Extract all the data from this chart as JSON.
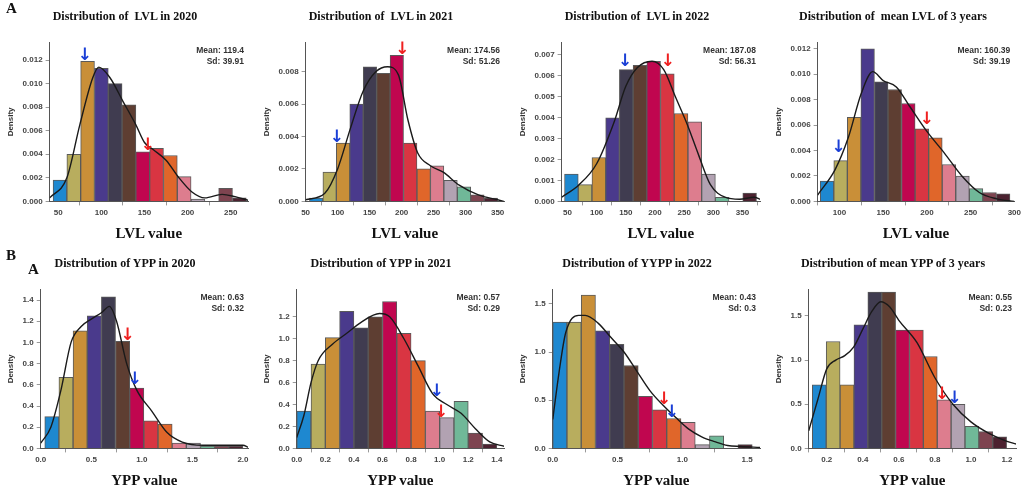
{
  "chart_data": [
    {
      "type": "histogram",
      "title": "Distribution of  LVL in 2020",
      "xlabel": "LVL value",
      "ylabel": "Density",
      "bins": [
        44,
        60,
        76,
        92,
        108,
        124,
        140,
        156,
        172,
        188,
        204,
        220,
        236,
        252,
        268
      ],
      "values": [
        0.0018,
        0.004,
        0.0119,
        0.0113,
        0.01,
        0.0082,
        0.0042,
        0.0045,
        0.0039,
        0.0021,
        0.0002,
        0,
        0.0011,
        0.0003
      ],
      "colors": [
        "#1e88d0",
        "#b8ad5e",
        "#c98f38",
        "#4a3a8c",
        "#403c50",
        "#5e3e32",
        "#c0064f",
        "#d93542",
        "#e0662a",
        "#dd7d8e",
        "#b2a2b2",
        "#70b898",
        "#7e4450",
        "#4c2230"
      ],
      "series": [
        {
          "type": "line",
          "color": "#1a1a1a",
          "x": [
            40,
            60,
            75,
            90,
            97,
            110,
            125,
            140,
            150,
            160,
            175,
            190,
            205,
            220,
            240,
            255,
            270
          ],
          "values": [
            0.0003,
            0.002,
            0.0065,
            0.0105,
            0.0114,
            0.0105,
            0.0085,
            0.0065,
            0.005,
            0.0044,
            0.0035,
            0.002,
            0.0008,
            0.0003,
            0.0006,
            0.0004,
            0.0001
          ]
        }
      ],
      "xlim": [
        40,
        270
      ],
      "xticks": [
        50,
        100,
        150,
        200,
        250
      ],
      "ylim": [
        0,
        0.0135
      ],
      "yticks": [
        {
          "value": 0,
          "label": "0.000"
        },
        {
          "value": 0.002,
          "label": "0.002"
        },
        {
          "value": 0.004,
          "label": "0.004"
        },
        {
          "value": 0.006,
          "label": "0.006"
        },
        {
          "value": 0.008,
          "label": "0.008"
        },
        {
          "value": 0.01,
          "label": "0.010"
        },
        {
          "value": 0.012,
          "label": "0.012"
        }
      ],
      "annotations": [
        "A",
        "Mean: 119.4",
        "Sd: 39.91",
        {
          "text": "↓",
          "x": 81,
          "y": 0.0119
        },
        {
          "text": "↓",
          "x": 154,
          "y": 0.0043
        }
      ]
    },
    {
      "type": "histogram",
      "title": "Distribution of  LVL in 2021",
      "xlabel": "LVL value",
      "ylabel": "Density",
      "bins": [
        56,
        77,
        98,
        119,
        140,
        161,
        182,
        203,
        224,
        245,
        266,
        287,
        308,
        329,
        350
      ],
      "values": [
        0.0002,
        0.0018,
        0.0036,
        0.006,
        0.0083,
        0.0079,
        0.009,
        0.0036,
        0.002,
        0.0022,
        0.0013,
        0.0009,
        0.0004,
        0.0002
      ],
      "colors": [
        "#1e88d0",
        "#b8ad5e",
        "#c98f38",
        "#4a3a8c",
        "#403c50",
        "#5e3e32",
        "#c0064f",
        "#d93542",
        "#e0662a",
        "#dd7d8e",
        "#b2a2b2",
        "#70b898",
        "#7e4450",
        "#4c2230"
      ],
      "series": [
        {
          "type": "line",
          "color": "#1a1a1a",
          "x": [
            50,
            80,
            100,
            120,
            140,
            160,
            178,
            195,
            210,
            225,
            245,
            265,
            290,
            320,
            350,
            360
          ],
          "values": [
            0.0001,
            0.0005,
            0.002,
            0.0045,
            0.0068,
            0.008,
            0.0083,
            0.0078,
            0.005,
            0.003,
            0.0022,
            0.0018,
            0.001,
            0.0004,
            0.0001,
            0
          ]
        }
      ],
      "xlim": [
        50,
        360
      ],
      "xticks": [
        50,
        100,
        150,
        200,
        250,
        300,
        350
      ],
      "ylim": [
        0,
        0.0098
      ],
      "yticks": [
        {
          "value": 0,
          "label": "0.000"
        },
        {
          "value": 0.002,
          "label": "0.002"
        },
        {
          "value": 0.004,
          "label": "0.004"
        },
        {
          "value": 0.006,
          "label": "0.006"
        },
        {
          "value": 0.008,
          "label": "0.008"
        }
      ],
      "annotations": [
        "Mean: 174.56",
        "Sd: 51.26",
        {
          "text": "↓",
          "x": 99,
          "y": 0.0036
        },
        {
          "text": "↓",
          "x": 201,
          "y": 0.009
        }
      ]
    },
    {
      "type": "histogram",
      "title": "Distribution of  LVL in 2022",
      "xlabel": "LVL value",
      "ylabel": "Density",
      "bins": [
        45,
        68.5,
        92,
        115.5,
        139,
        162.5,
        186,
        209.5,
        233,
        256.5,
        280,
        303.5,
        327,
        350.5,
        374
      ],
      "values": [
        0.0013,
        0.0008,
        0.0021,
        0.004,
        0.0063,
        0.0065,
        0.0067,
        0.0061,
        0.0042,
        0.0038,
        0.0013,
        0.0002,
        0,
        0.0004
      ],
      "colors": [
        "#1e88d0",
        "#b8ad5e",
        "#c98f38",
        "#4a3a8c",
        "#403c50",
        "#5e3e32",
        "#c0064f",
        "#d93542",
        "#e0662a",
        "#dd7d8e",
        "#b2a2b2",
        "#70b898",
        "#7e4450",
        "#4c2230"
      ],
      "series": [
        {
          "type": "line",
          "color": "#1a1a1a",
          "x": [
            40,
            70,
            100,
            130,
            150,
            170,
            195,
            215,
            235,
            255,
            275,
            295,
            320,
            345,
            370,
            380
          ],
          "values": [
            0.0002,
            0.0008,
            0.0018,
            0.0038,
            0.0055,
            0.0064,
            0.0067,
            0.0063,
            0.005,
            0.0037,
            0.0022,
            0.0008,
            0.0002,
            0.0001,
            0.0002,
            0.0001
          ]
        }
      ],
      "xlim": [
        40,
        380
      ],
      "xticks": [
        50,
        100,
        150,
        200,
        250,
        300,
        350
      ],
      "ylim": [
        0,
        0.0076
      ],
      "yticks": [
        {
          "value": 0,
          "label": "0.000"
        },
        {
          "value": 0.001,
          "label": "0.001"
        },
        {
          "value": 0.002,
          "label": "0.002"
        },
        {
          "value": 0.003,
          "label": "0.003"
        },
        {
          "value": 0.004,
          "label": "0.004"
        },
        {
          "value": 0.005,
          "label": "0.005"
        },
        {
          "value": 0.006,
          "label": "0.006"
        },
        {
          "value": 0.007,
          "label": "0.007"
        }
      ],
      "annotations": [
        "Mean: 187.08",
        "Sd: 56.31",
        {
          "text": "↓",
          "x": 149,
          "y": 0.0064
        },
        {
          "text": "↓",
          "x": 222,
          "y": 0.0064
        }
      ]
    },
    {
      "type": "histogram",
      "title": "Distribution of  mean LVL of 3 years",
      "xlabel": "LVL value",
      "ylabel": "Density",
      "bins": [
        78,
        93.5,
        109,
        124.5,
        140,
        155.5,
        171,
        186.5,
        202,
        217.5,
        233,
        248.5,
        264,
        279.5,
        295
      ],
      "values": [
        0.0016,
        0.0032,
        0.0066,
        0.012,
        0.0094,
        0.0088,
        0.0077,
        0.0057,
        0.005,
        0.0029,
        0.002,
        0.001,
        0.0007,
        0.0006
      ],
      "colors": [
        "#1e88d0",
        "#b8ad5e",
        "#c98f38",
        "#4a3a8c",
        "#403c50",
        "#5e3e32",
        "#c0064f",
        "#d93542",
        "#e0662a",
        "#dd7d8e",
        "#b2a2b2",
        "#70b898",
        "#7e4450",
        "#4c2230"
      ],
      "series": [
        {
          "type": "line",
          "color": "#1a1a1a",
          "x": [
            75,
            95,
            110,
            125,
            138,
            150,
            165,
            180,
            200,
            220,
            240,
            260,
            280,
            300
          ],
          "values": [
            0.0005,
            0.0025,
            0.005,
            0.0085,
            0.0102,
            0.0095,
            0.009,
            0.0075,
            0.0055,
            0.0038,
            0.002,
            0.0007,
            0.0002,
            0
          ]
        }
      ],
      "xlim": [
        75,
        300
      ],
      "xticks": [
        100,
        150,
        200,
        250,
        300
      ],
      "ylim": [
        0,
        0.0125
      ],
      "yticks": [
        {
          "value": 0,
          "label": "0.000"
        },
        {
          "value": 0.002,
          "label": "0.002"
        },
        {
          "value": 0.004,
          "label": "0.004"
        },
        {
          "value": 0.006,
          "label": "0.006"
        },
        {
          "value": 0.008,
          "label": "0.008"
        },
        {
          "value": 0.01,
          "label": "0.010"
        },
        {
          "value": 0.012,
          "label": "0.012"
        }
      ],
      "annotations": [
        "Mean: 160.39",
        "Sd: 39.19",
        {
          "text": "↓",
          "x": 99,
          "y": 0.0038
        },
        {
          "text": "↓",
          "x": 200,
          "y": 0.006
        }
      ]
    },
    {
      "type": "histogram",
      "title": "Distribution of YPP in 2020",
      "xlabel": "YPP value",
      "ylabel": "Density",
      "bins": [
        0.04,
        0.18,
        0.32,
        0.46,
        0.6,
        0.74,
        0.88,
        1.02,
        1.16,
        1.3,
        1.44,
        1.58,
        1.72,
        1.86,
        2
      ],
      "values": [
        0.3,
        0.67,
        1.11,
        1.25,
        1.43,
        1.01,
        0.57,
        0.26,
        0.23,
        0.05,
        0.05,
        0.02,
        0.02,
        0.02
      ],
      "colors": [
        "#1e88d0",
        "#b8ad5e",
        "#c98f38",
        "#4a3a8c",
        "#403c50",
        "#5e3e32",
        "#c0064f",
        "#d93542",
        "#e0662a",
        "#dd7d8e",
        "#b2a2b2",
        "#70b898",
        "#7e4450",
        "#4c2230"
      ],
      "series": [
        {
          "type": "line",
          "color": "#1a1a1a",
          "x": [
            0,
            0.1,
            0.2,
            0.3,
            0.4,
            0.5,
            0.6,
            0.68,
            0.75,
            0.85,
            0.95,
            1.1,
            1.25,
            1.4,
            1.6,
            1.8,
            2,
            2.05
          ],
          "values": [
            0.05,
            0.2,
            0.55,
            1,
            1.15,
            1.22,
            1.28,
            1.34,
            1.2,
            0.8,
            0.55,
            0.35,
            0.15,
            0.06,
            0.03,
            0.03,
            0.03,
            0.01
          ]
        }
      ],
      "xlim": [
        0,
        2.05
      ],
      "xticks": [
        {
          "value": 0,
          "label": "0.0"
        },
        {
          "value": 0.5,
          "label": "0.5"
        },
        {
          "value": 1,
          "label": "1.0"
        },
        {
          "value": 1.5,
          "label": "1.5"
        },
        {
          "value": 2,
          "label": "2.0"
        }
      ],
      "ylim": [
        0,
        1.5
      ],
      "yticks": [
        {
          "value": 0,
          "label": "0.0"
        },
        {
          "value": 0.2,
          "label": "0.2"
        },
        {
          "value": 0.4,
          "label": "0.4"
        },
        {
          "value": 0.6,
          "label": "0.6"
        },
        {
          "value": 0.8,
          "label": "0.8"
        },
        {
          "value": 1,
          "label": "1.0"
        },
        {
          "value": 1.2,
          "label": "1.2"
        },
        {
          "value": 1.4,
          "label": "1.4"
        }
      ],
      "annotations": [
        "B",
        "A",
        "Mean: 0.63",
        "Sd: 0.32",
        {
          "text": "↓",
          "x": 0.93,
          "y": 0.6
        },
        {
          "text": "↓",
          "x": 0.86,
          "y": 1.01
        }
      ]
    },
    {
      "type": "histogram",
      "title": "Distribution of YPP in 2021",
      "xlabel": "YPP value",
      "ylabel": "Density",
      "bins": [
        0,
        0.1,
        0.2,
        0.3,
        0.4,
        0.5,
        0.6,
        0.7,
        0.8,
        0.9,
        1,
        1.1,
        1.2,
        1.3,
        1.4
      ],
      "values": [
        0.34,
        0.77,
        1.01,
        1.25,
        1.1,
        1.2,
        1.34,
        1.05,
        0.8,
        0.34,
        0.28,
        0.43,
        0.14,
        0.04
      ],
      "colors": [
        "#1e88d0",
        "#b8ad5e",
        "#c98f38",
        "#4a3a8c",
        "#403c50",
        "#5e3e32",
        "#c0064f",
        "#d93542",
        "#e0662a",
        "#dd7d8e",
        "#b2a2b2",
        "#70b898",
        "#7e4450",
        "#4c2230"
      ],
      "series": [
        {
          "type": "line",
          "color": "#1a1a1a",
          "x": [
            0,
            0.05,
            0.1,
            0.15,
            0.25,
            0.35,
            0.45,
            0.58,
            0.65,
            0.75,
            0.85,
            0.95,
            1.05,
            1.15,
            1.25,
            1.35,
            1.45
          ],
          "values": [
            0.1,
            0.3,
            0.6,
            0.8,
            0.95,
            1.05,
            1.15,
            1.23,
            1.2,
            1,
            0.75,
            0.5,
            0.4,
            0.32,
            0.18,
            0.06,
            0.02
          ]
        }
      ],
      "xlim": [
        0,
        1.45
      ],
      "xticks": [
        {
          "value": 0,
          "label": "0.0"
        },
        {
          "value": 0.2,
          "label": "0.2"
        },
        {
          "value": 0.4,
          "label": "0.4"
        },
        {
          "value": 0.6,
          "label": "0.6"
        },
        {
          "value": 0.8,
          "label": "0.8"
        },
        {
          "value": 1,
          "label": "1.0"
        },
        {
          "value": 1.2,
          "label": "1.2"
        },
        {
          "value": 1.4,
          "label": "1.4"
        }
      ],
      "ylim": [
        0,
        1.45
      ],
      "yticks": [
        {
          "value": 0,
          "label": "0.0"
        },
        {
          "value": 0.2,
          "label": "0.2"
        },
        {
          "value": 0.4,
          "label": "0.4"
        },
        {
          "value": 0.6,
          "label": "0.6"
        },
        {
          "value": 0.8,
          "label": "0.8"
        },
        {
          "value": 1,
          "label": "1.0"
        },
        {
          "value": 1.2,
          "label": "1.2"
        }
      ],
      "annotations": [
        "Mean: 0.57",
        "Sd: 0.29",
        {
          "text": "↓",
          "x": 0.98,
          "y": 0.47
        },
        {
          "text": "↓",
          "x": 1.01,
          "y": 0.28
        }
      ]
    },
    {
      "type": "histogram",
      "title": "Distribution of YYPP in 2022",
      "xlabel": "YPP value",
      "ylabel": "Density",
      "bins": [
        0,
        0.11,
        0.22,
        0.33,
        0.44,
        0.55,
        0.66,
        0.77,
        0.88,
        0.99,
        1.1,
        1.21,
        1.32,
        1.43,
        1.54
      ],
      "values": [
        1.31,
        1.31,
        1.59,
        1.22,
        1.08,
        0.86,
        0.54,
        0.4,
        0.31,
        0.27,
        0.04,
        0.13,
        0,
        0.04
      ],
      "colors": [
        "#1e88d0",
        "#b8ad5e",
        "#c98f38",
        "#4a3a8c",
        "#403c50",
        "#5e3e32",
        "#c0064f",
        "#d93542",
        "#e0662a",
        "#dd7d8e",
        "#b2a2b2",
        "#70b898",
        "#7e4450",
        "#4c2230"
      ],
      "series": [
        {
          "type": "line",
          "color": "#1a1a1a",
          "x": [
            0,
            0.05,
            0.1,
            0.2,
            0.25,
            0.35,
            0.45,
            0.55,
            0.65,
            0.75,
            0.85,
            0.95,
            1.05,
            1.15,
            1.25,
            1.35,
            1.45,
            1.6
          ],
          "values": [
            0.3,
            0.8,
            1.2,
            1.38,
            1.38,
            1.3,
            1.15,
            1,
            0.8,
            0.6,
            0.45,
            0.32,
            0.2,
            0.12,
            0.07,
            0.03,
            0.02,
            0.01
          ]
        }
      ],
      "xlim": [
        0,
        1.6
      ],
      "xticks": [
        {
          "value": 0,
          "label": "0.0"
        },
        {
          "value": 0.5,
          "label": "0.5"
        },
        {
          "value": 1,
          "label": "1.0"
        },
        {
          "value": 1.5,
          "label": "1.5"
        }
      ],
      "ylim": [
        0,
        1.65
      ],
      "yticks": [
        {
          "value": 0,
          "label": "0.0"
        },
        {
          "value": 0.5,
          "label": "0.5"
        },
        {
          "value": 1,
          "label": "1.0"
        },
        {
          "value": 1.5,
          "label": "1.5"
        }
      ],
      "annotations": [
        "Mean: 0.43",
        "Sd: 0.3",
        {
          "text": "↓",
          "x": 0.92,
          "y": 0.31
        },
        {
          "text": "↓",
          "x": 0.86,
          "y": 0.45
        }
      ]
    },
    {
      "type": "histogram",
      "title": "Distribution of mean YPP of 3 years",
      "xlabel": "YPP value",
      "ylabel": "Density",
      "bins": [
        0.12,
        0.197,
        0.274,
        0.351,
        0.428,
        0.505,
        0.582,
        0.659,
        0.736,
        0.813,
        0.89,
        0.967,
        1.044,
        1.121,
        1.198
      ],
      "values": [
        0.72,
        1.21,
        0.72,
        1.4,
        1.77,
        1.77,
        1.34,
        1.34,
        1.04,
        0.55,
        0.5,
        0.25,
        0.19,
        0.13
      ],
      "colors": [
        "#1e88d0",
        "#b8ad5e",
        "#c98f38",
        "#4a3a8c",
        "#403c50",
        "#5e3e32",
        "#c0064f",
        "#d93542",
        "#e0662a",
        "#dd7d8e",
        "#b2a2b2",
        "#70b898",
        "#7e4450",
        "#4c2230"
      ],
      "series": [
        {
          "type": "line",
          "color": "#1a1a1a",
          "x": [
            0.1,
            0.15,
            0.2,
            0.25,
            0.3,
            0.35,
            0.4,
            0.45,
            0.5,
            0.55,
            0.6,
            0.7,
            0.8,
            0.9,
            1,
            1.1,
            1.2,
            1.25
          ],
          "values": [
            0.2,
            0.55,
            0.9,
            1,
            1.05,
            1.15,
            1.35,
            1.55,
            1.66,
            1.6,
            1.45,
            1.2,
            0.8,
            0.5,
            0.3,
            0.17,
            0.08,
            0.05
          ]
        }
      ],
      "xlim": [
        0.1,
        1.25
      ],
      "xticks": [
        {
          "value": 0.2,
          "label": "0.2"
        },
        {
          "value": 0.4,
          "label": "0.4"
        },
        {
          "value": 0.6,
          "label": "0.6"
        },
        {
          "value": 0.8,
          "label": "0.8"
        },
        {
          "value": 1,
          "label": "1.0"
        },
        {
          "value": 1.2,
          "label": "1.2"
        }
      ],
      "ylim": [
        0,
        1.8
      ],
      "yticks": [
        {
          "value": 0,
          "label": "0.0"
        },
        {
          "value": 0.5,
          "label": "0.5"
        },
        {
          "value": 1,
          "label": "1.0"
        },
        {
          "value": 1.5,
          "label": "1.5"
        }
      ],
      "annotations": [
        "Mean: 0.55",
        "Sd: 0.23",
        {
          "text": "↓",
          "x": 0.91,
          "y": 0.5
        },
        {
          "text": "↓",
          "x": 0.84,
          "y": 0.55
        }
      ]
    }
  ]
}
